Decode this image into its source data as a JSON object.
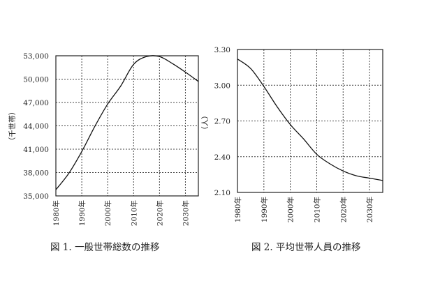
{
  "chart_data": [
    {
      "type": "line",
      "caption": "図 1.  一般世帯総数の推移",
      "ylabel": "（千世帯）",
      "x": [
        "1980年",
        "1985年",
        "1990年",
        "1995年",
        "2000年",
        "2005年",
        "2010年",
        "2015年",
        "2020年",
        "2025年",
        "2030年",
        "2035年"
      ],
      "xtick_labels": [
        "1980年",
        "1990年",
        "2000年",
        "2010年",
        "2020年",
        "2030年"
      ],
      "yticks": [
        "35,000",
        "38,000",
        "41,000",
        "44,000",
        "47,000",
        "50,000",
        "53,000"
      ],
      "ylim": [
        35000,
        53000
      ],
      "xlim": [
        "1980年",
        "2035年"
      ],
      "grid": true,
      "series": [
        {
          "values": [
            35800,
            37900,
            40700,
            43900,
            46800,
            49100,
            51900,
            52900,
            52900,
            52000,
            50900,
            49700
          ]
        }
      ]
    },
    {
      "type": "line",
      "caption": "図 2.  平均世帯人員の推移",
      "ylabel": "（人）",
      "x": [
        "1980年",
        "1985年",
        "1990年",
        "1995年",
        "2000年",
        "2005年",
        "2010年",
        "2015年",
        "2020年",
        "2025年",
        "2030年",
        "2035年"
      ],
      "xtick_labels": [
        "1980年",
        "1990年",
        "2000年",
        "2010年",
        "2020年",
        "2030年"
      ],
      "yticks": [
        "2.10",
        "2.40",
        "2.70",
        "3.00",
        "3.30"
      ],
      "ylim": [
        2.1,
        3.3
      ],
      "xlim": [
        "1980年",
        "2035年"
      ],
      "grid": true,
      "series": [
        {
          "values": [
            3.22,
            3.14,
            2.99,
            2.82,
            2.67,
            2.55,
            2.42,
            2.34,
            2.28,
            2.24,
            2.22,
            2.2
          ]
        }
      ]
    }
  ]
}
